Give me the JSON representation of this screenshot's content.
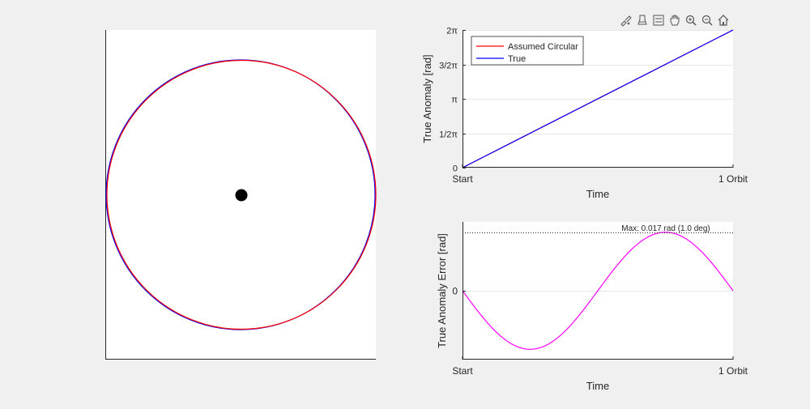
{
  "toolbar": {
    "icons": [
      "brush-icon",
      "data-tips-icon",
      "legend-icon",
      "pan-icon",
      "zoom-in-icon",
      "zoom-out-icon",
      "home-icon"
    ]
  },
  "colors": {
    "assumed_circular": "#ff0000",
    "true": "#0000ff",
    "error": "#ff00ff",
    "central_body": "#000000"
  },
  "chart_data": [
    {
      "type": "line",
      "name": "orbit-plot",
      "series": [
        {
          "name": "Assumed Circular",
          "shape": "circle",
          "center": [
            0,
            0
          ],
          "radius": 1.0
        },
        {
          "name": "True",
          "shape": "ellipse",
          "eccentricity": 0.0087,
          "semi_major_axis": 1.0
        }
      ],
      "markers": [
        {
          "name": "central-body",
          "x": 0,
          "y": 0
        }
      ],
      "axis_ticks": false
    },
    {
      "type": "line",
      "xlabel": "Time",
      "ylabel": "True Anomaly [rad]",
      "x_ticks": [
        "Start",
        "1 Orbit"
      ],
      "y_ticks": [
        {
          "value": 0,
          "label": "0"
        },
        {
          "value": 1.5708,
          "label": "1/2π"
        },
        {
          "value": 3.1416,
          "label": "π"
        },
        {
          "value": 4.7124,
          "label": "3/2π"
        },
        {
          "value": 6.2832,
          "label": "2π"
        }
      ],
      "xlim": [
        0,
        1
      ],
      "ylim": [
        0,
        6.2832
      ],
      "grid": "horizontal",
      "legend": {
        "placement": "top-left",
        "entries": [
          "Assumed Circular",
          "True"
        ]
      },
      "series": [
        {
          "name": "Assumed Circular",
          "x": [
            0,
            1
          ],
          "y": [
            0,
            6.2832
          ]
        },
        {
          "name": "True",
          "x": [
            0,
            1
          ],
          "y": [
            0,
            6.2832
          ]
        }
      ]
    },
    {
      "type": "line",
      "xlabel": "Time",
      "ylabel": "True Anomaly Error [rad]",
      "x_ticks": [
        "Start",
        "1 Orbit"
      ],
      "y_ticks": [
        {
          "value": 0,
          "label": "0"
        }
      ],
      "xlim": [
        0,
        1
      ],
      "ylim": [
        -0.02,
        0.02
      ],
      "grid": "horizontal",
      "series": [
        {
          "name": "error",
          "x": [
            0,
            0.25,
            0.5,
            0.75,
            1
          ],
          "y": [
            0,
            -0.017,
            0,
            0.017,
            0
          ],
          "amplitude": 0.017
        }
      ],
      "annotations": [
        {
          "text": "Max: 0.017 rad (1.0 deg)",
          "y": 0.017,
          "style": "dotted"
        }
      ]
    }
  ]
}
